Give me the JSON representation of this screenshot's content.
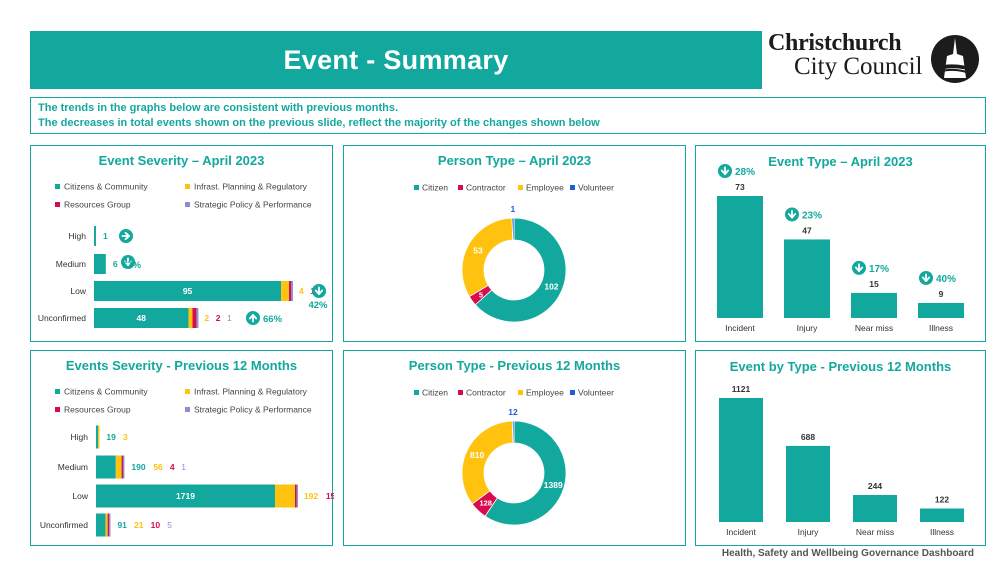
{
  "header": {
    "title": "Event - Summary"
  },
  "logo": {
    "line1": "Christchurch",
    "line2": "City Council"
  },
  "notes": [
    "The trends in the graphs below are consistent with previous months.",
    "The decreases in total events shown on the previous slide, reflect the majority of the changes shown below"
  ],
  "footer": {
    "text": "Health, Safety and Wellbeing Governance Dashboard"
  },
  "colors": {
    "teal": "#13A89E",
    "yellow": "#FFC20E",
    "red": "#D80B4E",
    "lilac": "#8C8FD0",
    "blue": "#1F5FD4"
  },
  "chart_data": [
    {
      "type": "bar",
      "orientation": "horizontal",
      "stacked": true,
      "title": "Event Severity – April 2023",
      "categories": [
        "High",
        "Medium",
        "Low",
        "Unconfirmed"
      ],
      "series": [
        {
          "name": "Citizens & Community",
          "values": [
            1,
            6,
            95,
            48
          ]
        },
        {
          "name": "Infrast.  Planning & Regulatory",
          "values": [
            0,
            0,
            4,
            2
          ]
        },
        {
          "name": "Resources Group",
          "values": [
            0,
            0,
            1,
            2
          ]
        },
        {
          "name": "Strategic Policy & Performance",
          "values": [
            0,
            0,
            1,
            1
          ]
        }
      ],
      "labels": [
        [
          "1"
        ],
        [
          "6"
        ],
        [
          "95",
          "4",
          "1",
          "1"
        ],
        [
          "48",
          "2",
          "2",
          "1"
        ]
      ],
      "trend": [
        {
          "category": "High",
          "dir": "right",
          "text": ""
        },
        {
          "category": "Medium",
          "dir": "down",
          "text": "67%"
        },
        {
          "category": "Low",
          "dir": "down",
          "text": "42%"
        },
        {
          "category": "Unconfirmed",
          "dir": "up",
          "text": "66%"
        }
      ],
      "xlim": [
        0,
        100
      ],
      "legend": "top"
    },
    {
      "type": "pie",
      "donut": true,
      "title": "Person Type – April 2023",
      "categories": [
        "Citizen",
        "Contractor",
        "Employee",
        "Volunteer"
      ],
      "values": [
        102,
        5,
        53,
        1
      ],
      "legend": "top"
    },
    {
      "type": "bar",
      "title": "Event Type – April 2023",
      "categories": [
        "Incident",
        "Injury",
        "Near miss",
        "Illness"
      ],
      "values": [
        73,
        47,
        15,
        9
      ],
      "trend": [
        {
          "dir": "down",
          "text": "28%"
        },
        {
          "dir": "down",
          "text": "23%"
        },
        {
          "dir": "down",
          "text": "17%"
        },
        {
          "dir": "down",
          "text": "40%"
        }
      ],
      "ylim": [
        0,
        73
      ]
    },
    {
      "type": "bar",
      "orientation": "horizontal",
      "stacked": true,
      "title": "Events Severity - Previous 12 Months",
      "categories": [
        "High",
        "Medium",
        "Low",
        "Unconfirmed"
      ],
      "series": [
        {
          "name": "Citizens & Community",
          "values": [
            19,
            190,
            1719,
            91
          ]
        },
        {
          "name": "Infrast.  Planning & Regulatory",
          "values": [
            3,
            56,
            192,
            21
          ]
        },
        {
          "name": "Resources Group",
          "values": [
            0,
            4,
            15,
            10
          ]
        },
        {
          "name": "Strategic Policy & Performance",
          "values": [
            0,
            1,
            13,
            5
          ]
        }
      ],
      "labels": [
        [
          "19",
          "3"
        ],
        [
          "190",
          "56",
          "4",
          "1"
        ],
        [
          "1719",
          "192",
          "15",
          "13"
        ],
        [
          "91",
          "21",
          "10",
          "5"
        ]
      ],
      "xlim": [
        0,
        1940
      ],
      "legend": "top"
    },
    {
      "type": "pie",
      "donut": true,
      "title": "Person Type - Previous 12 Months",
      "categories": [
        "Citizen",
        "Contractor",
        "Employee",
        "Volunteer"
      ],
      "values": [
        1389,
        128,
        810,
        12
      ],
      "legend": "top"
    },
    {
      "type": "bar",
      "title": "Event by Type - Previous 12 Months",
      "categories": [
        "Incident",
        "Injury",
        "Near miss",
        "Illness"
      ],
      "values": [
        1121,
        688,
        244,
        122
      ],
      "ylim": [
        0,
        1121
      ]
    }
  ]
}
